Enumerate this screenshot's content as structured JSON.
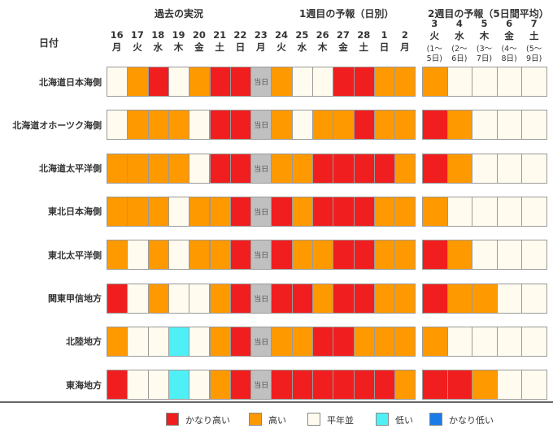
{
  "chart_data": {
    "type": "heatmap",
    "row_header_label": "日付",
    "section_labels": {
      "past": "過去の実況",
      "week1": "1週目の予報（日別）",
      "week2": "2週目の予報（5日間平均）"
    },
    "today_label": "当日",
    "dates": [
      {
        "day": "16",
        "dow": "月"
      },
      {
        "day": "17",
        "dow": "火"
      },
      {
        "day": "18",
        "dow": "水"
      },
      {
        "day": "19",
        "dow": "木"
      },
      {
        "day": "20",
        "dow": "金"
      },
      {
        "day": "21",
        "dow": "土"
      },
      {
        "day": "22",
        "dow": "日"
      },
      {
        "day": "23",
        "dow": "月"
      },
      {
        "day": "24",
        "dow": "火"
      },
      {
        "day": "25",
        "dow": "水"
      },
      {
        "day": "26",
        "dow": "木"
      },
      {
        "day": "27",
        "dow": "金"
      },
      {
        "day": "28",
        "dow": "土"
      },
      {
        "day": "1",
        "dow": "日"
      },
      {
        "day": "2",
        "dow": "月"
      }
    ],
    "today_index": 7,
    "week2_dates": [
      {
        "day": "3",
        "dow": "火",
        "range_a": "(1〜",
        "range_b": "5日)"
      },
      {
        "day": "4",
        "dow": "水",
        "range_a": "(2〜",
        "range_b": "6日)"
      },
      {
        "day": "5",
        "dow": "木",
        "range_a": "(3〜",
        "range_b": "7日)"
      },
      {
        "day": "6",
        "dow": "金",
        "range_a": "(4〜",
        "range_b": "8日)"
      },
      {
        "day": "7",
        "dow": "土",
        "range_a": "(5〜",
        "range_b": "9日)"
      }
    ],
    "categories": [
      {
        "key": "vh",
        "label": "かなり高い",
        "color": "#f01e1e"
      },
      {
        "key": "h",
        "label": "高い",
        "color": "#ff9900"
      },
      {
        "key": "n",
        "label": "平年並",
        "color": "#fffcef"
      },
      {
        "key": "l",
        "label": "低い",
        "color": "#4ef0f5"
      },
      {
        "key": "vl",
        "label": "かなり低い",
        "color": "#1a7ae8"
      }
    ],
    "today_color": "#c0c0c0",
    "rows": [
      {
        "region": "北海道日本海側",
        "daily": [
          "n",
          "h",
          "vh",
          "n",
          "h",
          "vh",
          "vh",
          "t",
          "h",
          "n",
          "n",
          "vh",
          "vh",
          "h",
          "h"
        ],
        "week2": [
          "h",
          "n",
          "n",
          "n",
          "n"
        ]
      },
      {
        "region": "北海道オホーツク海側",
        "daily": [
          "n",
          "h",
          "h",
          "h",
          "n",
          "vh",
          "vh",
          "t",
          "h",
          "n",
          "h",
          "h",
          "vh",
          "h",
          "h"
        ],
        "week2": [
          "vh",
          "h",
          "n",
          "n",
          "n"
        ]
      },
      {
        "region": "北海道太平洋側",
        "daily": [
          "h",
          "h",
          "h",
          "h",
          "n",
          "vh",
          "vh",
          "t",
          "h",
          "h",
          "vh",
          "vh",
          "vh",
          "vh",
          "h"
        ],
        "week2": [
          "vh",
          "h",
          "n",
          "n",
          "n"
        ]
      },
      {
        "region": "東北日本海側",
        "daily": [
          "h",
          "h",
          "h",
          "n",
          "h",
          "h",
          "vh",
          "t",
          "vh",
          "h",
          "vh",
          "vh",
          "vh",
          "h",
          "h"
        ],
        "week2": [
          "h",
          "n",
          "n",
          "n",
          "n"
        ]
      },
      {
        "region": "東北太平洋側",
        "daily": [
          "h",
          "n",
          "h",
          "n",
          "h",
          "h",
          "vh",
          "t",
          "vh",
          "h",
          "h",
          "vh",
          "vh",
          "h",
          "h"
        ],
        "week2": [
          "vh",
          "h",
          "n",
          "n",
          "n"
        ]
      },
      {
        "region": "関東甲信地方",
        "daily": [
          "vh",
          "n",
          "h",
          "n",
          "n",
          "h",
          "vh",
          "t",
          "vh",
          "vh",
          "h",
          "vh",
          "vh",
          "h",
          "h"
        ],
        "week2": [
          "vh",
          "h",
          "h",
          "n",
          "n"
        ]
      },
      {
        "region": "北陸地方",
        "daily": [
          "h",
          "n",
          "n",
          "l",
          "n",
          "h",
          "vh",
          "t",
          "h",
          "h",
          "vh",
          "vh",
          "h",
          "h",
          "h"
        ],
        "week2": [
          "h",
          "n",
          "n",
          "n",
          "n"
        ]
      },
      {
        "region": "東海地方",
        "daily": [
          "vh",
          "n",
          "n",
          "l",
          "n",
          "h",
          "vh",
          "t",
          "vh",
          "vh",
          "vh",
          "vh",
          "vh",
          "vh",
          "h"
        ],
        "week2": [
          "vh",
          "vh",
          "h",
          "n",
          "n"
        ]
      }
    ]
  }
}
